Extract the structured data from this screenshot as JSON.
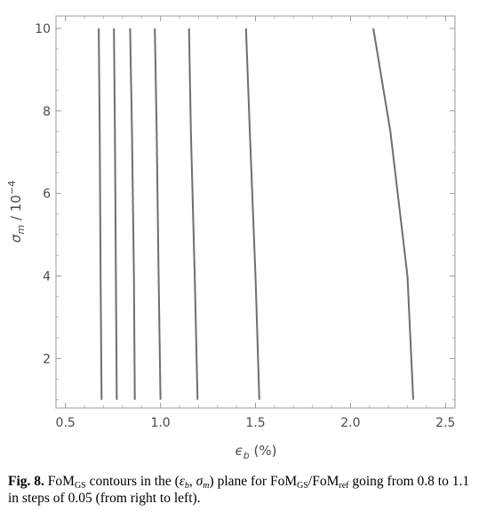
{
  "chart_data": {
    "type": "line",
    "xlabel": "ϵb (%)",
    "ylabel": "σm / 10−4",
    "xlim": [
      0.45,
      2.55
    ],
    "ylim": [
      0.8,
      10.3
    ],
    "xticks": [
      "0.5",
      "1.0",
      "1.5",
      "2.0",
      "2.5"
    ],
    "yticks": [
      "2",
      "4",
      "6",
      "8",
      "10"
    ],
    "grid": false,
    "line_color": "#6e6e6e",
    "series": [
      {
        "x": [
          2.33,
          2.3,
          2.21,
          2.12
        ],
        "y": [
          1.0,
          4.0,
          7.5,
          10.0
        ]
      },
      {
        "x": [
          1.52,
          1.5,
          1.47,
          1.45
        ],
        "y": [
          1.0,
          4.0,
          7.5,
          10.0
        ]
      },
      {
        "x": [
          1.195,
          1.18,
          1.16,
          1.15
        ],
        "y": [
          1.0,
          4.0,
          7.5,
          10.0
        ]
      },
      {
        "x": [
          1.0,
          0.99,
          0.98,
          0.97
        ],
        "y": [
          1.0,
          4.0,
          7.5,
          10.0
        ]
      },
      {
        "x": [
          0.865,
          0.86,
          0.85,
          0.84
        ],
        "y": [
          1.0,
          4.0,
          7.5,
          10.0
        ]
      },
      {
        "x": [
          0.77,
          0.765,
          0.76,
          0.755
        ],
        "y": [
          1.0,
          4.0,
          7.5,
          10.0
        ]
      },
      {
        "x": [
          0.69,
          0.685,
          0.68,
          0.675
        ],
        "y": [
          1.0,
          4.0,
          7.5,
          10.0
        ]
      }
    ]
  },
  "caption": {
    "fig": "Fig. 8.",
    "t1": " FoM",
    "s1": "GS",
    "t2": " contours in the (",
    "eps": "ε",
    "eps_sub": "b",
    "t3": ", ",
    "sig": "σ",
    "sig_sub": "m",
    "t4": ") plane for FoM",
    "s2": "GS",
    "t5": "/FoM",
    "s3": "ref",
    "t6": " going from 0.8 to 1.1 in steps of 0.05 (from right to left)."
  }
}
